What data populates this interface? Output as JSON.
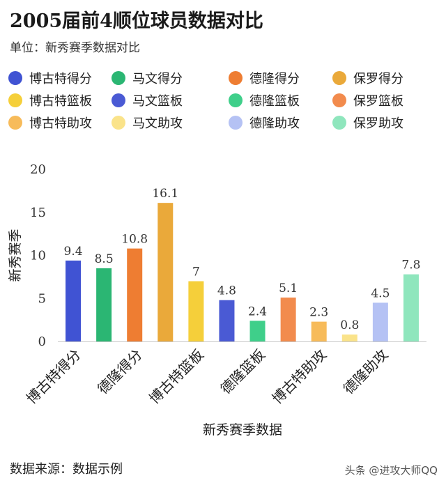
{
  "title": "2005届前4顺位球员数据对比",
  "subtitle": "单位：新秀赛季数据对比",
  "footer": {
    "source": "数据来源：数据示例",
    "watermark": "头条 @进攻大师QQ"
  },
  "chart_data": {
    "type": "bar",
    "categories": [
      "博古特得分",
      "德隆得分",
      "博古特篮板",
      "德隆篮板",
      "博古特助攻",
      "德隆助攻"
    ],
    "bars": [
      {
        "name": "博古特得分",
        "value": 9.4,
        "color": "#4053d3"
      },
      {
        "name": "马文得分",
        "value": 8.5,
        "color": "#2bb673"
      },
      {
        "name": "德隆得分",
        "value": 10.8,
        "color": "#ee7d32"
      },
      {
        "name": "保罗得分",
        "value": 16.1,
        "color": "#eaa93a"
      },
      {
        "name": "博古特篮板",
        "value": 7,
        "color": "#f5cf3a"
      },
      {
        "name": "马文篮板",
        "value": 4.8,
        "color": "#4a5ad4"
      },
      {
        "name": "德隆篮板",
        "value": 2.4,
        "color": "#3fcf8a"
      },
      {
        "name": "保罗篮板",
        "value": 5.1,
        "color": "#f28b4d"
      },
      {
        "name": "博古特助攻",
        "value": 2.3,
        "color": "#f7bb5a"
      },
      {
        "name": "马文助攻",
        "value": 0.8,
        "color": "#fae38a"
      },
      {
        "name": "德隆助攻",
        "value": 4.5,
        "color": "#b5c2f4"
      },
      {
        "name": "保罗助攻",
        "value": 7.8,
        "color": "#8fe6bd"
      }
    ],
    "xlabel": "新秀赛季数据",
    "ylabel": "新秀赛季",
    "ylim": [
      0,
      20
    ],
    "yticks": [
      "0",
      "5",
      "10",
      "15",
      "20"
    ],
    "grid": false,
    "legend_position": "top"
  }
}
